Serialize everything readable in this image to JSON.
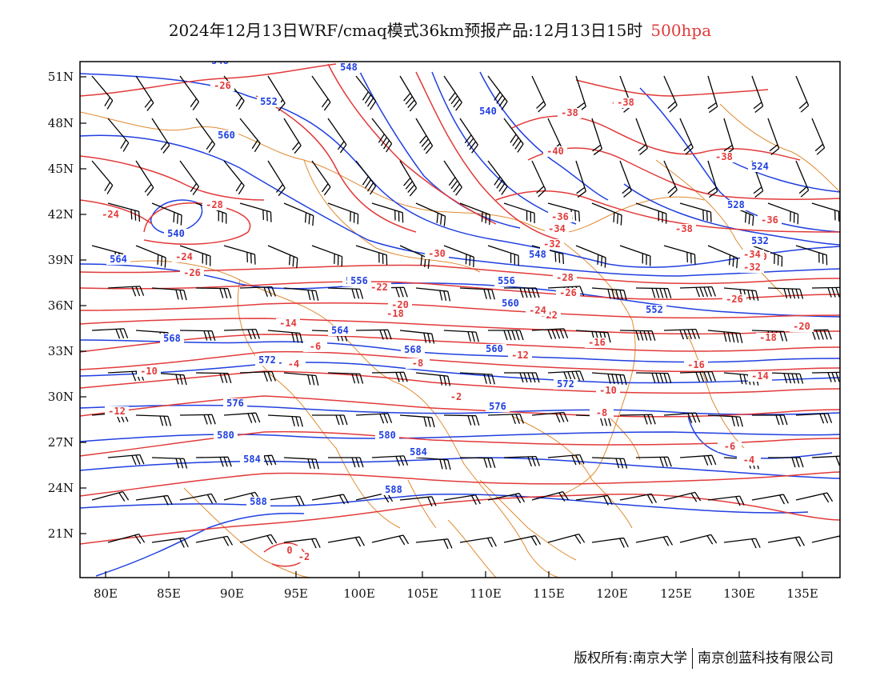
{
  "title": {
    "main": "2024年12月13日WRF/cmaq模式36km预报产品:12月13日15时",
    "level": "500hpa"
  },
  "colors": {
    "temperature": "#e23a3a",
    "height": "#1f3fe0",
    "border": "#e08a30",
    "wind": "#000000"
  },
  "axes": {
    "lat_labels": [
      "51N",
      "48N",
      "45N",
      "42N",
      "39N",
      "36N",
      "33N",
      "30N",
      "27N",
      "24N",
      "21N"
    ],
    "lon_labels": [
      "80E",
      "85E",
      "90E",
      "95E",
      "100E",
      "105E",
      "110E",
      "115E",
      "120E",
      "125E",
      "130E",
      "135E"
    ]
  },
  "temperature_labels": [
    "-26",
    "-26",
    "-24",
    "-28",
    "-24",
    "-26",
    "-36",
    "-38",
    "-40",
    "-38",
    "-36",
    "-34",
    "-32",
    "-38",
    "-38",
    "-30",
    "-26",
    "-22",
    "-20",
    "-18",
    "-16",
    "-14",
    "-12",
    "-10",
    "-8",
    "-6",
    "-4",
    "-2",
    "0",
    "-2",
    "-18",
    "-16",
    "-14",
    "-12",
    "-10",
    "-8",
    "-6",
    "-4",
    "-20",
    "-22",
    "-24",
    "-26",
    "-28",
    "-30",
    "-32",
    "-34"
  ],
  "height_labels": [
    "548",
    "548",
    "552",
    "560",
    "540",
    "564",
    "564",
    "568",
    "572",
    "576",
    "580",
    "584",
    "588",
    "556",
    "556",
    "560",
    "548",
    "552",
    "560",
    "564",
    "568",
    "572",
    "576",
    "580",
    "584",
    "588",
    "528",
    "524",
    "532",
    "540"
  ],
  "footer": {
    "left": "版权所有:南京大学",
    "right": "南京创蓝科技有限公司"
  }
}
